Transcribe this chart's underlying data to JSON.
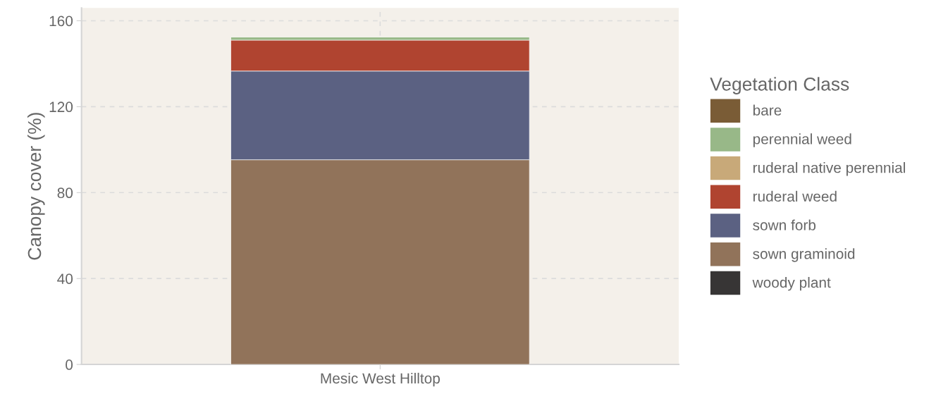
{
  "chart_data": {
    "type": "bar",
    "stacked": true,
    "ylabel": "Canopy cover (%)",
    "legend_title": "Vegetation Class",
    "legend": "right",
    "grid": true,
    "categories": [
      "Mesic West Hilltop"
    ],
    "ylim": [
      0,
      166
    ],
    "yticks": [
      0,
      40,
      80,
      120,
      160
    ],
    "series": [
      {
        "name": "woody plant",
        "color": "#373535",
        "values": [
          0
        ]
      },
      {
        "name": "sown graminoid",
        "color": "#91735a",
        "values": [
          95.3
        ]
      },
      {
        "name": "sown forb",
        "color": "#5b6182",
        "values": [
          41.3
        ]
      },
      {
        "name": "ruderal weed",
        "color": "#b04430",
        "values": [
          14.4
        ]
      },
      {
        "name": "ruderal native perennial",
        "color": "#c8a979",
        "values": [
          0
        ]
      },
      {
        "name": "perennial weed",
        "color": "#98b888",
        "values": [
          1.4
        ]
      },
      {
        "name": "bare",
        "color": "#7a5c36",
        "values": [
          0
        ]
      }
    ]
  }
}
